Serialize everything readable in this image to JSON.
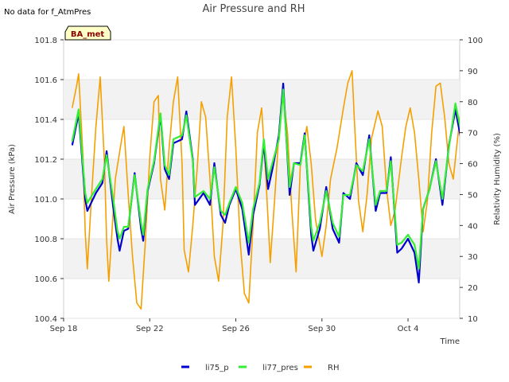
{
  "chart_data": {
    "type": "line",
    "title": "Air Pressure and RH",
    "no_data_note": "No data for f_AtmPres",
    "badge": "BA_met",
    "xlabel": "Time",
    "ylabel_left": "Air Pressure (kPa)",
    "ylabel_right": "Relativity Humidity (%)",
    "ylim_left": [
      100.4,
      101.8
    ],
    "ylim_right": [
      10,
      100
    ],
    "xlim_days": [
      0,
      18.4
    ],
    "grid": "horizontal bands",
    "legend_position": "bottom-center",
    "x_ticks": [
      {
        "day": 0,
        "label": "Sep 18"
      },
      {
        "day": 4,
        "label": "Sep 22"
      },
      {
        "day": 8,
        "label": "Sep 26"
      },
      {
        "day": 12,
        "label": "Sep 30"
      },
      {
        "day": 16,
        "label": "Oct 4"
      }
    ],
    "y_ticks_left": [
      "100.4",
      "100.6",
      "100.8",
      "101.0",
      "101.2",
      "101.4",
      "101.6",
      "101.8"
    ],
    "y_ticks_right": [
      "10",
      "20",
      "30",
      "40",
      "50",
      "60",
      "70",
      "80",
      "90",
      "100"
    ],
    "series": [
      {
        "name": "li75_p",
        "axis": "left",
        "color": "#0000cc",
        "points": [
          [
            0.4,
            101.27
          ],
          [
            0.7,
            101.43
          ],
          [
            1.0,
            101.0
          ],
          [
            1.1,
            100.94
          ],
          [
            1.5,
            101.03
          ],
          [
            1.8,
            101.08
          ],
          [
            2.0,
            101.24
          ],
          [
            2.3,
            100.96
          ],
          [
            2.5,
            100.8
          ],
          [
            2.6,
            100.74
          ],
          [
            2.8,
            100.84
          ],
          [
            3.0,
            100.85
          ],
          [
            3.3,
            101.13
          ],
          [
            3.6,
            100.85
          ],
          [
            3.7,
            100.79
          ],
          [
            3.9,
            101.04
          ],
          [
            4.2,
            101.18
          ],
          [
            4.5,
            101.42
          ],
          [
            4.7,
            101.15
          ],
          [
            4.9,
            101.1
          ],
          [
            5.1,
            101.28
          ],
          [
            5.5,
            101.3
          ],
          [
            5.7,
            101.44
          ],
          [
            6.0,
            101.2
          ],
          [
            6.1,
            100.97
          ],
          [
            6.5,
            101.03
          ],
          [
            6.8,
            100.97
          ],
          [
            7.0,
            101.18
          ],
          [
            7.3,
            100.92
          ],
          [
            7.5,
            100.88
          ],
          [
            7.7,
            100.97
          ],
          [
            8.0,
            101.05
          ],
          [
            8.3,
            100.95
          ],
          [
            8.6,
            100.72
          ],
          [
            8.8,
            100.92
          ],
          [
            9.1,
            101.07
          ],
          [
            9.3,
            101.28
          ],
          [
            9.5,
            101.05
          ],
          [
            9.7,
            101.15
          ],
          [
            10.0,
            101.32
          ],
          [
            10.2,
            101.58
          ],
          [
            10.5,
            101.02
          ],
          [
            10.7,
            101.18
          ],
          [
            11.0,
            101.18
          ],
          [
            11.2,
            101.33
          ],
          [
            11.5,
            100.82
          ],
          [
            11.6,
            100.74
          ],
          [
            11.9,
            100.85
          ],
          [
            12.2,
            101.06
          ],
          [
            12.5,
            100.85
          ],
          [
            12.8,
            100.78
          ],
          [
            13.0,
            101.03
          ],
          [
            13.3,
            101.0
          ],
          [
            13.6,
            101.18
          ],
          [
            13.9,
            101.12
          ],
          [
            14.2,
            101.32
          ],
          [
            14.5,
            100.94
          ],
          [
            14.7,
            101.03
          ],
          [
            15.0,
            101.03
          ],
          [
            15.2,
            101.21
          ],
          [
            15.5,
            100.73
          ],
          [
            15.7,
            100.75
          ],
          [
            16.0,
            100.8
          ],
          [
            16.3,
            100.73
          ],
          [
            16.5,
            100.58
          ],
          [
            16.7,
            100.95
          ],
          [
            17.0,
            101.05
          ],
          [
            17.3,
            101.2
          ],
          [
            17.6,
            100.97
          ],
          [
            17.9,
            101.27
          ],
          [
            18.2,
            101.45
          ],
          [
            18.5,
            101.28
          ],
          [
            18.8,
            101.48
          ],
          [
            19.0,
            101.58
          ]
        ]
      },
      {
        "name": "li77_pres",
        "axis": "left",
        "color": "#33ee33",
        "points": [
          [
            0.4,
            101.29
          ],
          [
            0.7,
            101.45
          ],
          [
            1.0,
            101.03
          ],
          [
            1.1,
            100.98
          ],
          [
            1.5,
            101.05
          ],
          [
            1.8,
            101.1
          ],
          [
            2.0,
            101.22
          ],
          [
            2.3,
            101.0
          ],
          [
            2.5,
            100.84
          ],
          [
            2.6,
            100.8
          ],
          [
            2.8,
            100.86
          ],
          [
            3.0,
            100.86
          ],
          [
            3.3,
            101.12
          ],
          [
            3.6,
            100.88
          ],
          [
            3.7,
            100.82
          ],
          [
            3.9,
            101.05
          ],
          [
            4.2,
            101.19
          ],
          [
            4.5,
            101.43
          ],
          [
            4.7,
            101.17
          ],
          [
            4.9,
            101.12
          ],
          [
            5.1,
            101.3
          ],
          [
            5.5,
            101.32
          ],
          [
            5.7,
            101.42
          ],
          [
            6.0,
            101.19
          ],
          [
            6.1,
            101.01
          ],
          [
            6.5,
            101.04
          ],
          [
            6.8,
            101.0
          ],
          [
            7.0,
            101.16
          ],
          [
            7.3,
            100.94
          ],
          [
            7.5,
            100.92
          ],
          [
            7.7,
            100.98
          ],
          [
            8.0,
            101.06
          ],
          [
            8.3,
            100.98
          ],
          [
            8.6,
            100.78
          ],
          [
            8.8,
            100.95
          ],
          [
            9.1,
            101.08
          ],
          [
            9.3,
            101.3
          ],
          [
            9.5,
            101.1
          ],
          [
            9.7,
            101.18
          ],
          [
            10.0,
            101.3
          ],
          [
            10.2,
            101.55
          ],
          [
            10.5,
            101.06
          ],
          [
            10.7,
            101.18
          ],
          [
            11.0,
            101.17
          ],
          [
            11.2,
            101.32
          ],
          [
            11.5,
            100.86
          ],
          [
            11.6,
            100.79
          ],
          [
            11.9,
            100.88
          ],
          [
            12.2,
            101.04
          ],
          [
            12.5,
            100.88
          ],
          [
            12.8,
            100.81
          ],
          [
            13.0,
            101.02
          ],
          [
            13.3,
            101.02
          ],
          [
            13.6,
            101.17
          ],
          [
            13.9,
            101.14
          ],
          [
            14.2,
            101.3
          ],
          [
            14.5,
            100.97
          ],
          [
            14.7,
            101.04
          ],
          [
            15.0,
            101.04
          ],
          [
            15.2,
            101.19
          ],
          [
            15.5,
            100.77
          ],
          [
            15.7,
            100.78
          ],
          [
            16.0,
            100.82
          ],
          [
            16.3,
            100.77
          ],
          [
            16.5,
            100.65
          ],
          [
            16.7,
            100.95
          ],
          [
            17.0,
            101.05
          ],
          [
            17.3,
            101.19
          ],
          [
            17.6,
            101.0
          ],
          [
            17.9,
            101.26
          ],
          [
            18.2,
            101.48
          ],
          [
            18.5,
            101.32
          ],
          [
            18.8,
            101.5
          ],
          [
            19.0,
            101.6
          ]
        ]
      },
      {
        "name": "RH",
        "axis": "right",
        "color": "#f5a000",
        "points": [
          [
            0.4,
            78
          ],
          [
            0.6,
            85
          ],
          [
            0.7,
            89
          ],
          [
            0.9,
            62
          ],
          [
            1.0,
            38
          ],
          [
            1.1,
            26
          ],
          [
            1.3,
            50
          ],
          [
            1.5,
            72
          ],
          [
            1.6,
            80
          ],
          [
            1.7,
            88
          ],
          [
            1.9,
            60
          ],
          [
            2.0,
            35
          ],
          [
            2.1,
            22
          ],
          [
            2.4,
            55
          ],
          [
            2.7,
            68
          ],
          [
            2.8,
            72
          ],
          [
            3.0,
            50
          ],
          [
            3.2,
            30
          ],
          [
            3.4,
            15
          ],
          [
            3.6,
            13
          ],
          [
            3.8,
            35
          ],
          [
            4.0,
            62
          ],
          [
            4.2,
            80
          ],
          [
            4.4,
            82
          ],
          [
            4.5,
            55
          ],
          [
            4.7,
            45
          ],
          [
            4.9,
            65
          ],
          [
            5.1,
            80
          ],
          [
            5.3,
            88
          ],
          [
            5.5,
            60
          ],
          [
            5.6,
            32
          ],
          [
            5.8,
            25
          ],
          [
            6.0,
            40
          ],
          [
            6.2,
            58
          ],
          [
            6.4,
            80
          ],
          [
            6.6,
            75
          ],
          [
            6.8,
            55
          ],
          [
            7.0,
            30
          ],
          [
            7.2,
            22
          ],
          [
            7.4,
            40
          ],
          [
            7.6,
            75
          ],
          [
            7.8,
            88
          ],
          [
            8.0,
            65
          ],
          [
            8.2,
            35
          ],
          [
            8.4,
            18
          ],
          [
            8.6,
            15
          ],
          [
            8.8,
            40
          ],
          [
            9.0,
            70
          ],
          [
            9.2,
            78
          ],
          [
            9.4,
            55
          ],
          [
            9.6,
            28
          ],
          [
            9.8,
            48
          ],
          [
            10.0,
            70
          ],
          [
            10.2,
            82
          ],
          [
            10.4,
            70
          ],
          [
            10.6,
            45
          ],
          [
            10.8,
            25
          ],
          [
            11.0,
            60
          ],
          [
            11.3,
            72
          ],
          [
            11.5,
            60
          ],
          [
            11.7,
            42
          ],
          [
            12.0,
            30
          ],
          [
            12.2,
            40
          ],
          [
            12.4,
            55
          ],
          [
            12.7,
            65
          ],
          [
            13.0,
            78
          ],
          [
            13.2,
            86
          ],
          [
            13.4,
            90
          ],
          [
            13.5,
            75
          ],
          [
            13.7,
            48
          ],
          [
            13.9,
            38
          ],
          [
            14.1,
            50
          ],
          [
            14.3,
            68
          ],
          [
            14.6,
            77
          ],
          [
            14.8,
            72
          ],
          [
            15.0,
            52
          ],
          [
            15.2,
            40
          ],
          [
            15.4,
            45
          ],
          [
            15.7,
            62
          ],
          [
            15.9,
            72
          ],
          [
            16.1,
            78
          ],
          [
            16.3,
            70
          ],
          [
            16.5,
            55
          ],
          [
            16.7,
            38
          ],
          [
            16.9,
            48
          ],
          [
            17.1,
            70
          ],
          [
            17.3,
            85
          ],
          [
            17.5,
            86
          ],
          [
            17.7,
            75
          ],
          [
            17.9,
            60
          ],
          [
            18.1,
            55
          ],
          [
            18.3,
            68
          ],
          [
            18.5,
            80
          ],
          [
            18.7,
            88
          ],
          [
            18.9,
            80
          ],
          [
            19.0,
            78
          ]
        ]
      }
    ]
  }
}
